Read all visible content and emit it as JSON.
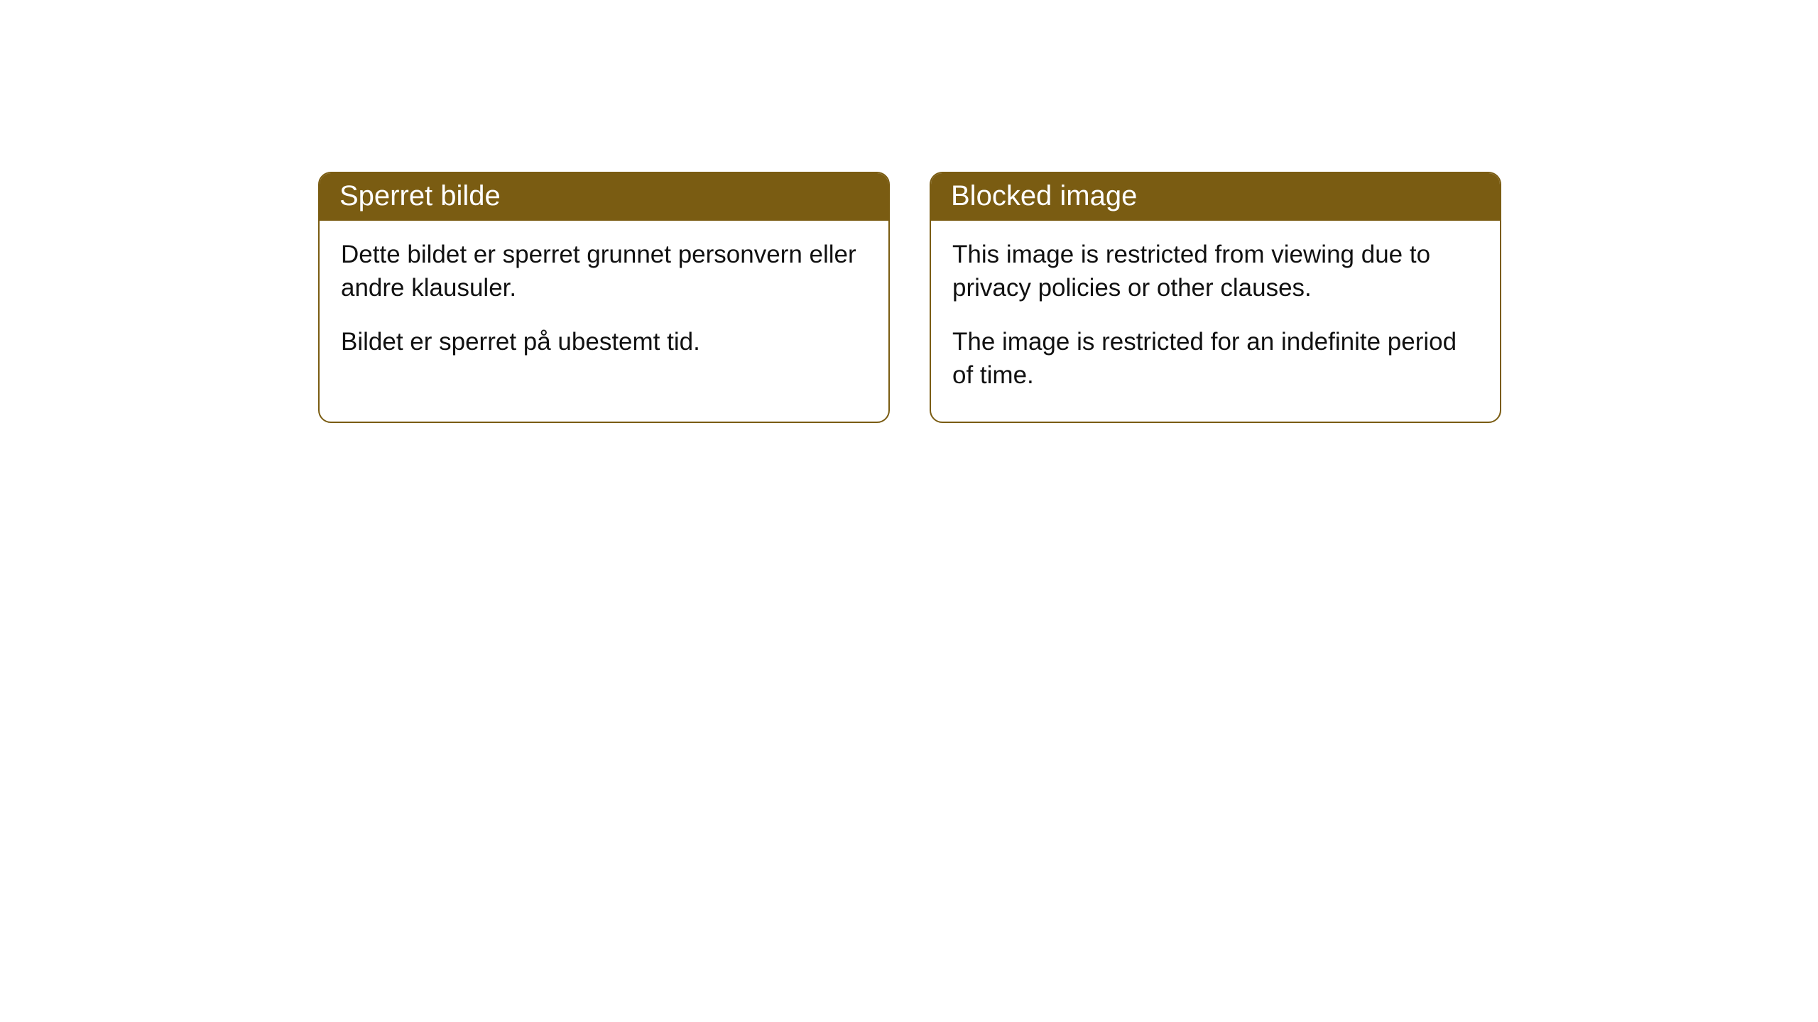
{
  "cards": {
    "left": {
      "title": "Sperret bilde",
      "paragraph1": "Dette bildet er sperret grunnet personvern eller andre klausuler.",
      "paragraph2": "Bildet er sperret på ubestemt tid."
    },
    "right": {
      "title": "Blocked image",
      "paragraph1": "This image is restricted from viewing due to privacy policies or other clauses.",
      "paragraph2": "The image is restricted for an indefinite period of time."
    }
  },
  "style": {
    "header_bg": "#7a5c12",
    "header_text_color": "#ffffff",
    "border_color": "#7a5c12",
    "body_bg": "#ffffff",
    "body_text_color": "#111111",
    "border_radius": 18,
    "title_fontsize": 40,
    "body_fontsize": 35
  }
}
